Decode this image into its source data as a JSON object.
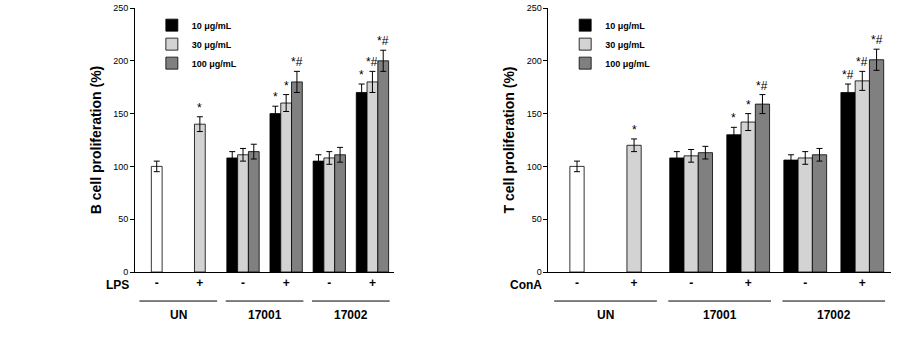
{
  "chart_data": [
    {
      "type": "bar",
      "y_title": "B cell proliferation (%)",
      "x_title": "LPS",
      "categories": [
        "-",
        "+",
        "-",
        "+",
        "-",
        "+"
      ],
      "groups": [
        {
          "label": "UN",
          "categories": [
            0,
            1
          ]
        },
        {
          "label": "17001",
          "categories": [
            2,
            3
          ]
        },
        {
          "label": "17002",
          "categories": [
            4,
            5
          ]
        }
      ],
      "ylim": [
        0,
        250
      ],
      "yticks": [
        0,
        50,
        100,
        150,
        200,
        250
      ],
      "grid": false,
      "legend": "top left",
      "series": [
        {
          "colors": [
            "#ffffff",
            "#d3d3d3",
            null,
            null,
            null,
            null
          ],
          "values": [
            100,
            140,
            null,
            null,
            null,
            null
          ],
          "errors": [
            5,
            7,
            null,
            null,
            null,
            null
          ],
          "significance": [
            null,
            "*",
            null,
            null,
            null,
            null
          ]
        },
        {
          "name": "10 μg/mL",
          "color": "#000000",
          "values": [
            null,
            null,
            108,
            150,
            105,
            170
          ],
          "errors": [
            null,
            null,
            6,
            7,
            6,
            8
          ],
          "significance": [
            null,
            null,
            null,
            "*",
            null,
            "*"
          ]
        },
        {
          "name": "30 μg/mL",
          "color": "#d3d3d3",
          "values": [
            null,
            null,
            111,
            160,
            108,
            180
          ],
          "errors": [
            null,
            null,
            6,
            8,
            6,
            10
          ],
          "significance": [
            null,
            null,
            null,
            "*",
            null,
            "*#"
          ]
        },
        {
          "name": "100 μg/mL",
          "color": "#808080",
          "values": [
            null,
            null,
            114,
            180,
            111,
            200
          ],
          "errors": [
            null,
            null,
            7,
            10,
            7,
            10
          ],
          "significance": [
            null,
            null,
            null,
            "*#",
            null,
            "*#"
          ]
        }
      ]
    },
    {
      "type": "bar",
      "y_title": "T cell proliferation (%)",
      "x_title": "ConA",
      "categories": [
        "-",
        "+",
        "-",
        "+",
        "-",
        "+"
      ],
      "groups": [
        {
          "label": "UN",
          "categories": [
            0,
            1
          ]
        },
        {
          "label": "17001",
          "categories": [
            2,
            3
          ]
        },
        {
          "label": "17002",
          "categories": [
            4,
            5
          ]
        }
      ],
      "ylim": [
        0,
        250
      ],
      "yticks": [
        0,
        50,
        100,
        150,
        200,
        250
      ],
      "grid": false,
      "legend": "top left",
      "series": [
        {
          "colors": [
            "#ffffff",
            "#d3d3d3",
            null,
            null,
            null,
            null
          ],
          "values": [
            100,
            120,
            null,
            null,
            null,
            null
          ],
          "errors": [
            5,
            6,
            null,
            null,
            null,
            null
          ],
          "significance": [
            null,
            "*",
            null,
            null,
            null,
            null
          ]
        },
        {
          "name": "10 μg/mL",
          "color": "#000000",
          "values": [
            null,
            null,
            108,
            130,
            106,
            170
          ],
          "errors": [
            null,
            null,
            6,
            7,
            5,
            8
          ],
          "significance": [
            null,
            null,
            null,
            "*",
            null,
            "*#"
          ]
        },
        {
          "name": "30 μg/mL",
          "color": "#d3d3d3",
          "values": [
            null,
            null,
            110,
            142,
            108,
            181
          ],
          "errors": [
            null,
            null,
            6,
            8,
            6,
            9
          ],
          "significance": [
            null,
            null,
            null,
            "*",
            null,
            "*#"
          ]
        },
        {
          "name": "100 μg/mL",
          "color": "#808080",
          "values": [
            null,
            null,
            113,
            159,
            111,
            201
          ],
          "errors": [
            null,
            null,
            6,
            9,
            6,
            10
          ],
          "significance": [
            null,
            null,
            null,
            "*#",
            null,
            "*#"
          ]
        }
      ]
    }
  ]
}
